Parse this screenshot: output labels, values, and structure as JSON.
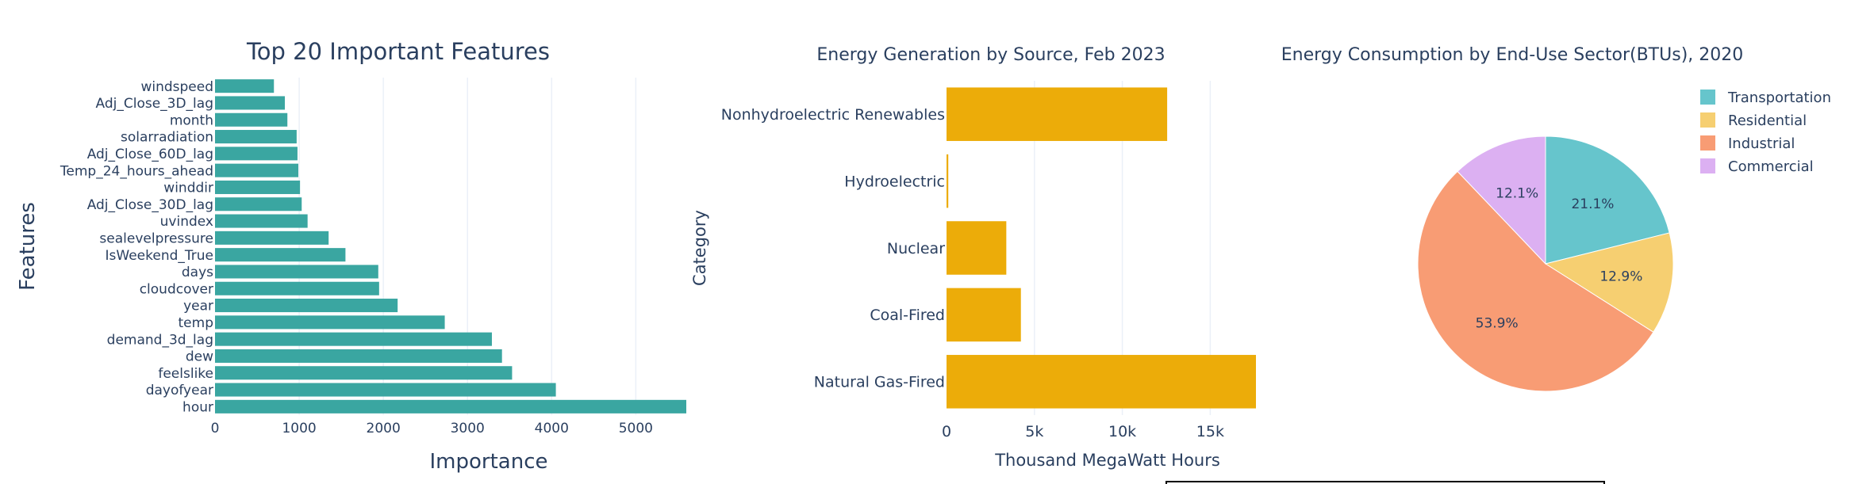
{
  "chart_data": [
    {
      "type": "bar",
      "orientation": "horizontal",
      "title": "Top 20 Important Features",
      "xlabel": "Importance",
      "ylabel": "Features",
      "xlim": [
        0,
        5600
      ],
      "xticks": [
        0,
        1000,
        2000,
        3000,
        4000,
        5000
      ],
      "xtick_labels": [
        "0",
        "1000",
        "2000",
        "3000",
        "4000",
        "5000"
      ],
      "grid": true,
      "color": "#3aa6a1",
      "categories": [
        "windspeed",
        "Adj_Close_3D_lag",
        "month",
        "solarradiation",
        "Adj_Close_60D_lag",
        "Temp_24_hours_ahead",
        "winddir",
        "Adj_Close_30D_lag",
        "uvindex",
        "sealevelpressure",
        "IsWeekend_True",
        "days",
        "cloudcover",
        "year",
        "temp",
        "demand_3d_lag",
        "dew",
        "feelslike",
        "dayofyear",
        "hour"
      ],
      "values": [
        700,
        830,
        860,
        970,
        980,
        990,
        1010,
        1030,
        1100,
        1350,
        1550,
        1940,
        1950,
        2170,
        2730,
        3290,
        3410,
        3530,
        4050,
        5600
      ]
    },
    {
      "type": "bar",
      "orientation": "horizontal",
      "title": "Energy Generation by Source, Feb 2023",
      "xlabel": "Thousand MegaWatt Hours",
      "ylabel": "Category",
      "xlim": [
        0,
        17600
      ],
      "xticks": [
        0,
        5000,
        10000,
        15000
      ],
      "xtick_labels": [
        "0",
        "5k",
        "10k",
        "15k"
      ],
      "grid": true,
      "color": "#ecac09",
      "categories": [
        "Nonhydroelectric Renewables",
        "Hydroelectric",
        "Nuclear",
        "Coal-Fired",
        "Natural Gas-Fired"
      ],
      "values": [
        12550,
        100,
        3400,
        4230,
        17600
      ]
    },
    {
      "type": "pie",
      "title": "Energy Consumption by End-Use Sector(BTUs), 2020",
      "legend_position": "top-right",
      "slices": [
        {
          "name": "Transportation",
          "value": 21.1,
          "label": "21.1%",
          "color": "#66c5cc"
        },
        {
          "name": "Residential",
          "value": 12.9,
          "label": "12.9%",
          "color": "#f6cf71"
        },
        {
          "name": "Industrial",
          "value": 53.9,
          "label": "53.9%",
          "color": "#f89c74"
        },
        {
          "name": "Commercial",
          "value": 12.1,
          "label": "12.1%",
          "color": "#dcb0f2"
        }
      ]
    }
  ]
}
